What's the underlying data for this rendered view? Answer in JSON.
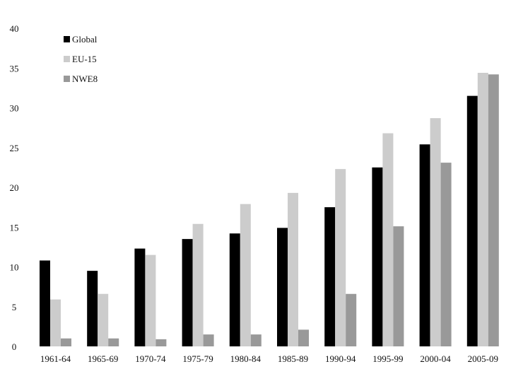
{
  "chart_data": {
    "type": "bar",
    "title": "",
    "xlabel": "",
    "ylabel": "",
    "ylim": [
      0,
      40
    ],
    "yticks": [
      0,
      5,
      10,
      15,
      20,
      25,
      30,
      35,
      40
    ],
    "grid": false,
    "legend_position": "top-left",
    "categories": [
      "1961-64",
      "1965-69",
      "1970-74",
      "1975-79",
      "1980-84",
      "1985-89",
      "1990-94",
      "1995-99",
      "2000-04",
      "2005-09"
    ],
    "series": [
      {
        "name": "Global",
        "color": "#000000",
        "values": [
          10.8,
          9.5,
          12.3,
          13.5,
          14.2,
          14.9,
          17.5,
          22.5,
          25.4,
          31.5
        ]
      },
      {
        "name": "EU-15",
        "color": "#cccccc",
        "values": [
          5.9,
          6.6,
          11.5,
          15.4,
          17.9,
          19.3,
          22.3,
          26.8,
          28.7,
          34.4
        ]
      },
      {
        "name": "NWE8",
        "color": "#999999",
        "values": [
          1.0,
          1.0,
          0.9,
          1.5,
          1.5,
          2.1,
          6.6,
          15.1,
          23.1,
          34.2
        ]
      }
    ]
  }
}
